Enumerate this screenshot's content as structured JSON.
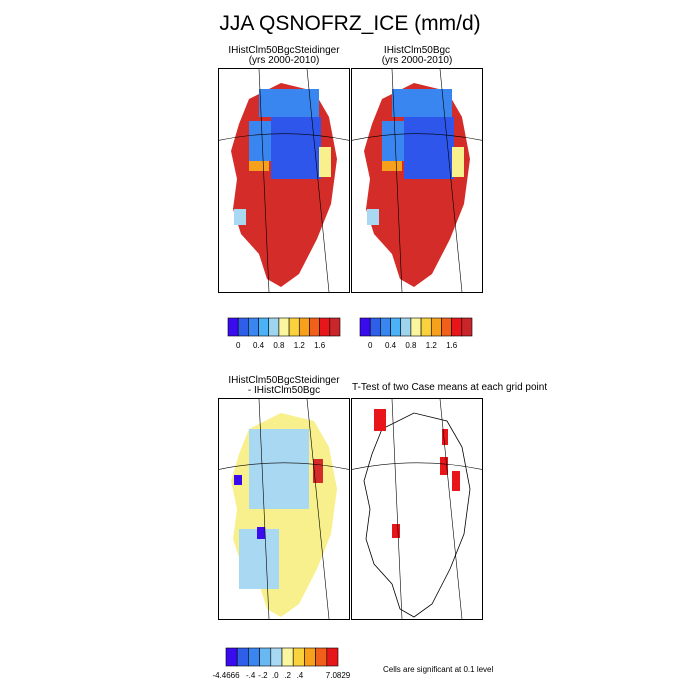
{
  "title": "JJA QSNOFRZ_ICE (mm/d)",
  "panels": {
    "top_left": {
      "title": "IHistClm50BgcSteidinger",
      "subtitle": "(yrs 2000-2010)"
    },
    "top_right": {
      "title": "IHistClm50Bgc",
      "subtitle": "(yrs 2000-2010)"
    },
    "bottom_left": {
      "title": "IHistClm50BgcSteidinger",
      "subtitle": "- IHistClm50Bgc"
    },
    "bottom_right": {
      "title": "T-Test of two Case means at each grid point"
    }
  },
  "colorbars": {
    "top": {
      "colors": [
        "#3a0bee",
        "#2f5ee8",
        "#3a86f0",
        "#4cb2f7",
        "#9fd4ef",
        "#faf6a0",
        "#f9d23e",
        "#f7a01c",
        "#f0601a",
        "#e6161a",
        "#c8262a"
      ],
      "labels": [
        "0",
        "0.4",
        "0.8",
        "1.2",
        "1.6"
      ]
    },
    "bottom": {
      "colors": [
        "#3a0bee",
        "#2f5ee8",
        "#3a86f0",
        "#6ab8f2",
        "#a9d8f2",
        "#faf6a0",
        "#f9d23e",
        "#f7a01c",
        "#f0601a",
        "#e6161a"
      ],
      "labels": [
        "-4.4666",
        "-.4",
        "-.2",
        ".0",
        ".2",
        ".4",
        "7.0829"
      ]
    }
  },
  "significance_note": "Cells are significant at 0.1 level",
  "colors": {
    "high": "#d42c28",
    "blue": "#2f56ea",
    "mid_blue": "#3a86f0",
    "light_blue": "#a9d8f2",
    "yellow": "#f8f08c",
    "violet": "#3a0bee",
    "sig_red": "#e8161a"
  }
}
